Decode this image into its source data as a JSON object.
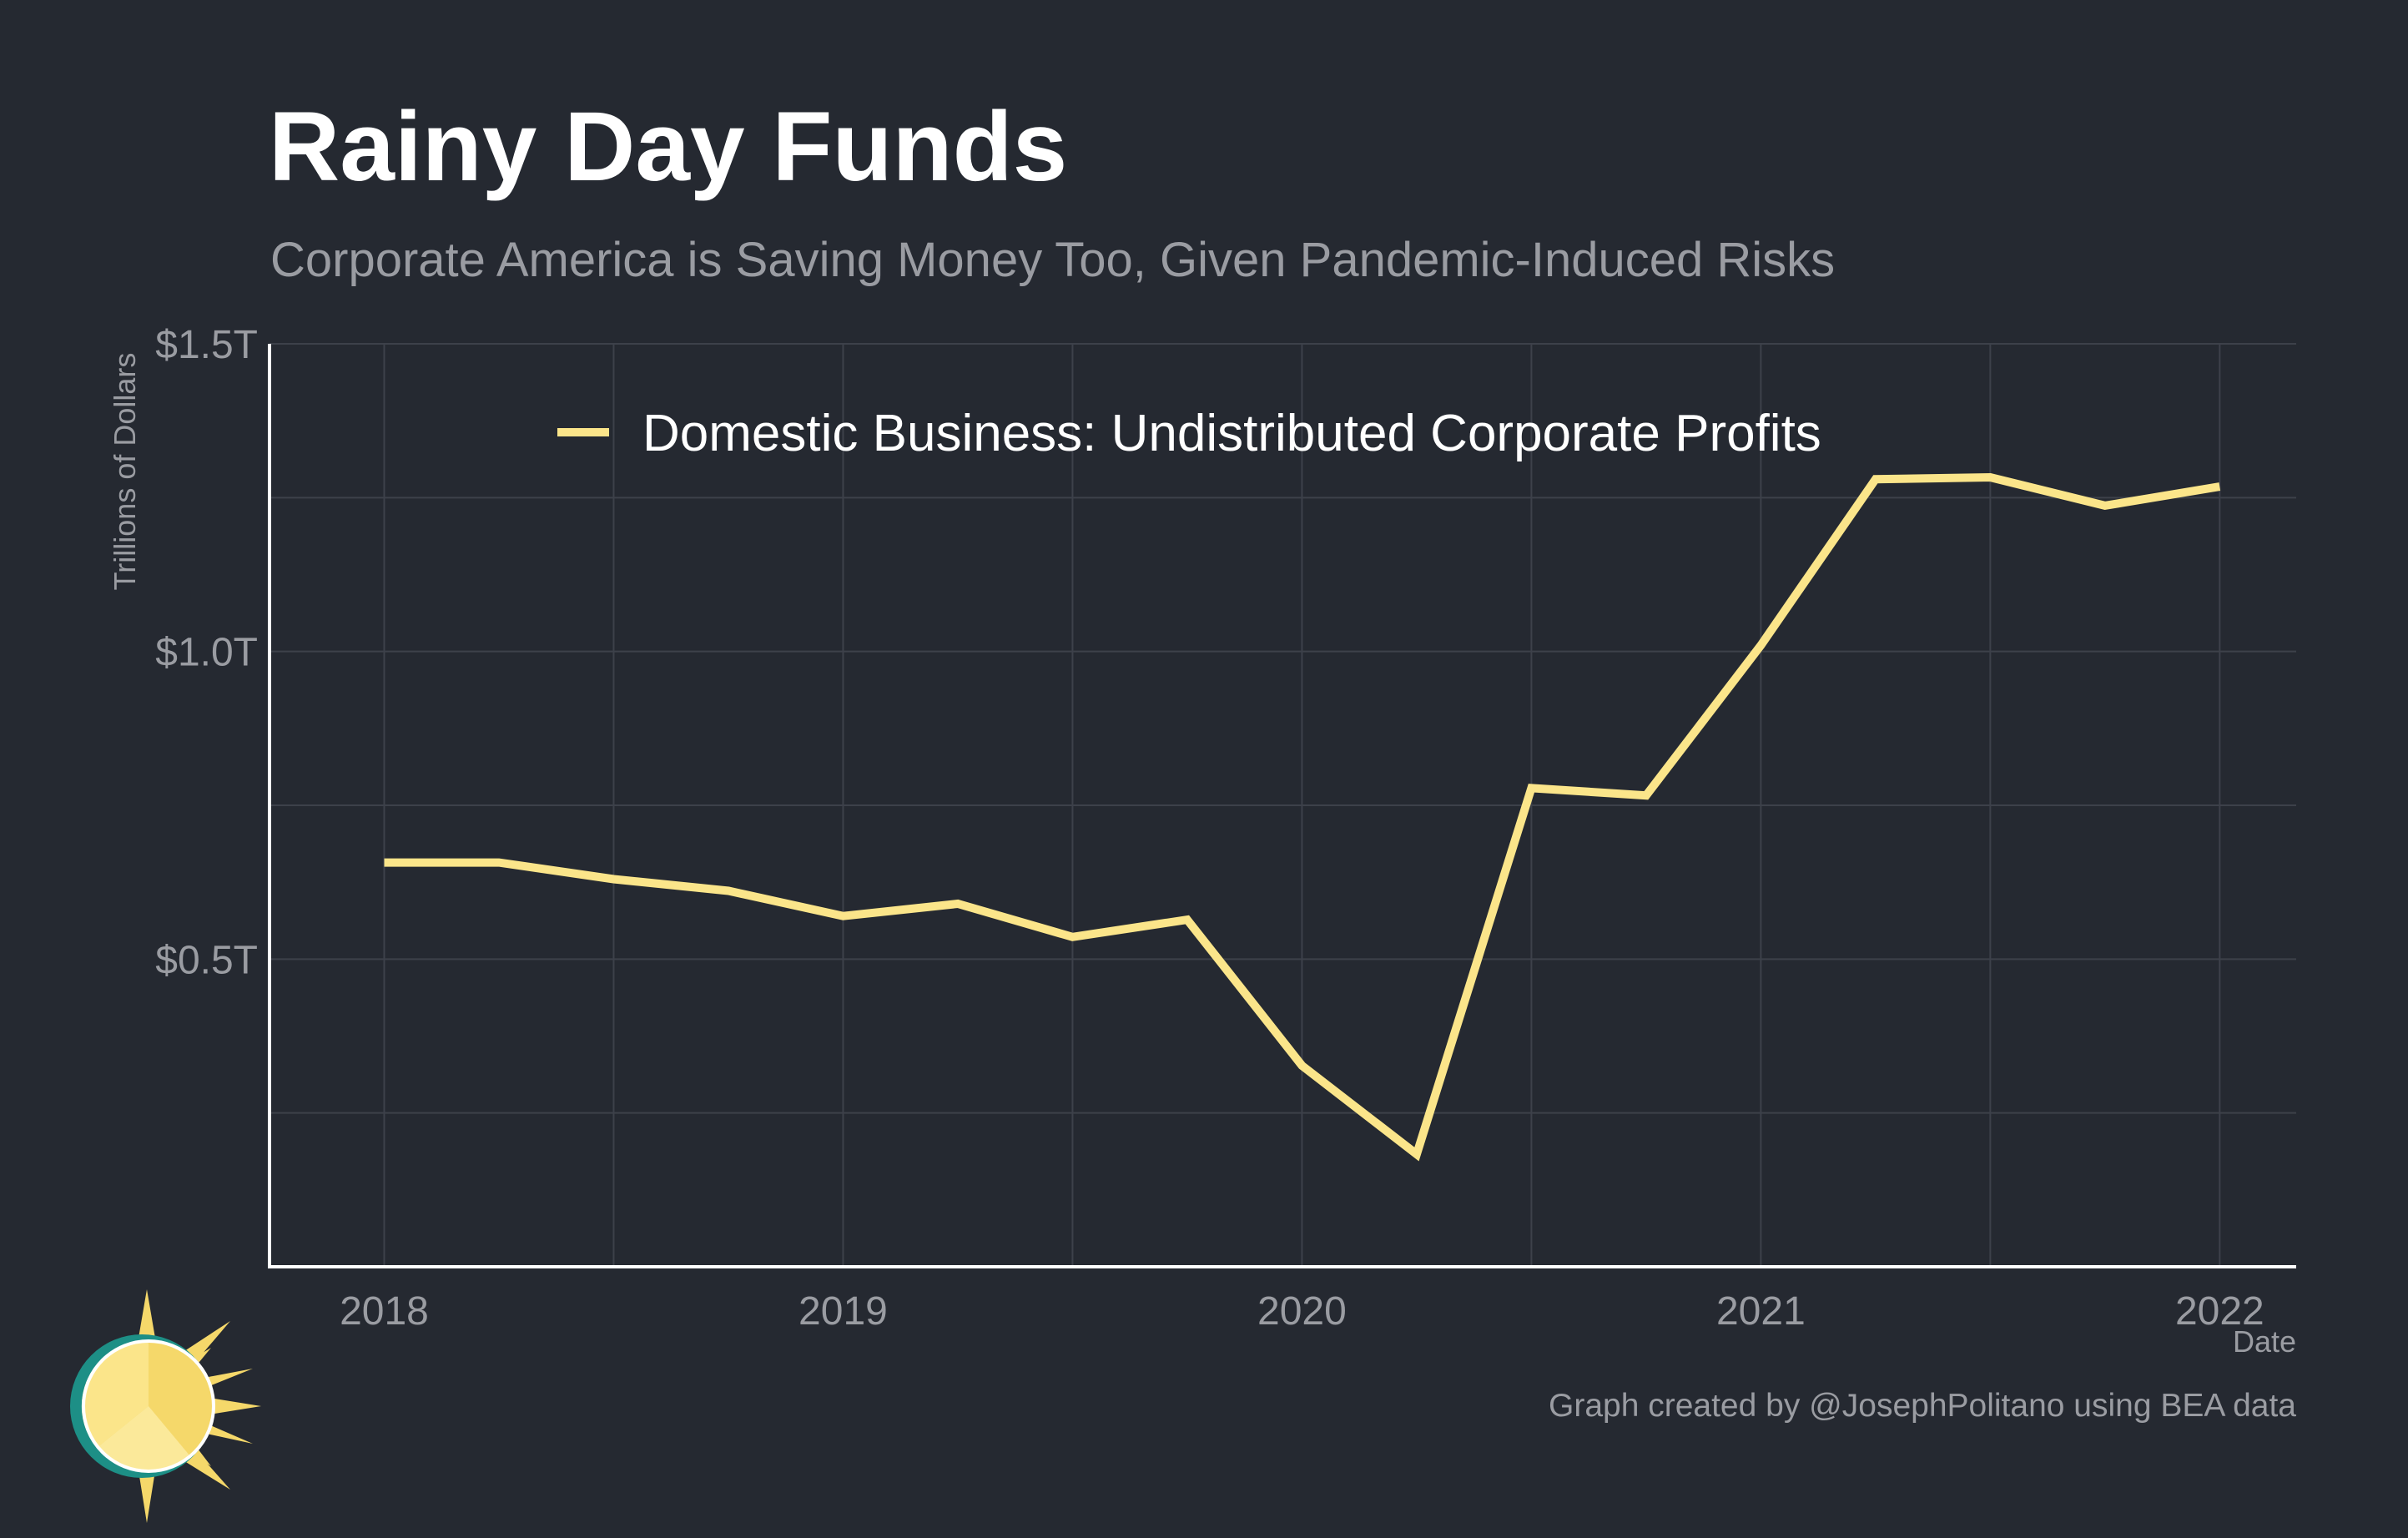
{
  "title": "Rainy Day Funds",
  "subtitle": "Corporate America is Saving Money Too, Given Pandemic-Induced Risks",
  "caption": "Graph created by @JosephPolitano using BEA data",
  "colors": {
    "background": "#252931",
    "line": "#fbe58a",
    "grid": "#3d414a",
    "axis": "#ffffff",
    "muted_text": "#9a9ca2"
  },
  "chart_data": {
    "type": "line",
    "title": "Rainy Day Funds",
    "subtitle": "Corporate America is Saving Money Too, Given Pandemic-Induced Risks",
    "xlabel": "Date",
    "ylabel": "Trillions of Dollars",
    "x_tick_labels": [
      "2018",
      "2019",
      "2020",
      "2021",
      "2022"
    ],
    "y_tick_labels": [
      "$0.5T",
      "$1.0T",
      "$1.5T"
    ],
    "y_tick_values": [
      0.5,
      1.0,
      1.5
    ],
    "y_minor_gridlines": [
      0.25,
      0.75,
      1.25
    ],
    "ylim": [
      0.0,
      1.5
    ],
    "xlim": [
      "2017-10",
      "2022-03"
    ],
    "grid": true,
    "legend_position": "top-center",
    "series": [
      {
        "name": "Domestic Business: Undistributed Corporate Profits",
        "color": "#fbe58a",
        "x": [
          "2018-Q1",
          "2018-Q2",
          "2018-Q3",
          "2018-Q4",
          "2019-Q1",
          "2019-Q2",
          "2019-Q3",
          "2019-Q4",
          "2020-Q1",
          "2020-Q2",
          "2020-Q3",
          "2020-Q4",
          "2021-Q1",
          "2021-Q2",
          "2021-Q3",
          "2021-Q4",
          "2022-Q1"
        ],
        "y": [
          0.657,
          0.657,
          0.63,
          0.611,
          0.57,
          0.59,
          0.536,
          0.564,
          0.327,
          0.183,
          0.778,
          0.766,
          1.01,
          1.28,
          1.283,
          1.237,
          1.268
        ]
      }
    ]
  }
}
